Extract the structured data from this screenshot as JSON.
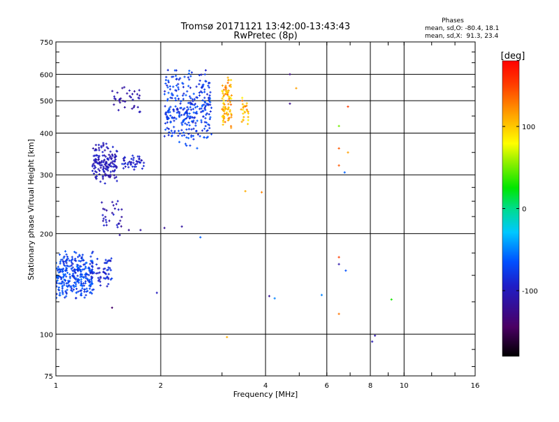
{
  "header": {
    "title_line1": "Tromsø 20171121 13:42:00-13:43:43",
    "title_line2": "RwPretec (8p)"
  },
  "phases_box": {
    "heading": "Phases",
    "line_o": "mean, sd,O: -80.4, 18.1",
    "line_x": "mean, sd,X:  91.3, 23.4"
  },
  "colorbar": {
    "unit_label": "[deg]",
    "range": [
      -180,
      180
    ],
    "ticks": [
      {
        "value": 100,
        "label": "100"
      },
      {
        "value": 0,
        "label": "0"
      },
      {
        "value": -100,
        "label": "-100"
      }
    ]
  },
  "chart_data": {
    "type": "scatter",
    "xlabel": "Frequency [MHz]",
    "ylabel": "Stationary phase Virtual Height [km]",
    "x_scale": "log",
    "y_scale": "log",
    "xlim": [
      1,
      16
    ],
    "ylim": [
      75,
      750
    ],
    "grid": true,
    "x_ticks": [
      {
        "value": 1,
        "label": "1"
      },
      {
        "value": 2,
        "label": "2"
      },
      {
        "value": 4,
        "label": "4"
      },
      {
        "value": 6,
        "label": "6"
      },
      {
        "value": 8,
        "label": "8"
      },
      {
        "value": 10,
        "label": "10"
      },
      {
        "value": 16,
        "label": "16"
      }
    ],
    "y_ticks": [
      {
        "value": 75,
        "label": "75"
      },
      {
        "value": 100,
        "label": "100"
      },
      {
        "value": 200,
        "label": "200"
      },
      {
        "value": 300,
        "label": "300"
      },
      {
        "value": 400,
        "label": "400"
      },
      {
        "value": 500,
        "label": "500"
      },
      {
        "value": 600,
        "label": "600"
      },
      {
        "value": 750,
        "label": "750"
      }
    ],
    "color_variable": "phase [deg]",
    "clusters": [
      {
        "x_range": [
          1.0,
          1.28
        ],
        "y_range": [
          125,
          180
        ],
        "phase_range": [
          -90,
          -55
        ],
        "count": 300
      },
      {
        "x_range": [
          1.25,
          1.45
        ],
        "y_range": [
          135,
          175
        ],
        "phase_range": [
          -100,
          -75
        ],
        "count": 60
      },
      {
        "x_range": [
          1.27,
          1.5
        ],
        "y_range": [
          280,
          380
        ],
        "phase_range": [
          -115,
          -90
        ],
        "count": 150
      },
      {
        "x_range": [
          1.55,
          1.8
        ],
        "y_range": [
          310,
          345
        ],
        "phase_range": [
          -110,
          -85
        ],
        "count": 45
      },
      {
        "x_range": [
          1.45,
          1.75
        ],
        "y_range": [
          450,
          560
        ],
        "phase_range": [
          -120,
          -100
        ],
        "count": 35
      },
      {
        "x_range": [
          1.35,
          1.55
        ],
        "y_range": [
          180,
          260
        ],
        "phase_range": [
          -120,
          -90
        ],
        "count": 30
      },
      {
        "x_range": [
          2.05,
          2.8
        ],
        "y_range": [
          345,
          640
        ],
        "phase_range": [
          -95,
          -60
        ],
        "count": 300
      },
      {
        "x_range": [
          3.0,
          3.2
        ],
        "y_range": [
          410,
          600
        ],
        "phase_range": [
          85,
          135
        ],
        "count": 90
      },
      {
        "x_range": [
          3.4,
          3.6
        ],
        "y_range": [
          410,
          520
        ],
        "phase_range": [
          80,
          140
        ],
        "count": 25
      }
    ],
    "points": [
      {
        "x": 1.45,
        "y": 120,
        "phase": -140
      },
      {
        "x": 1.62,
        "y": 205,
        "phase": -120
      },
      {
        "x": 1.75,
        "y": 205,
        "phase": -115
      },
      {
        "x": 2.05,
        "y": 208,
        "phase": -120
      },
      {
        "x": 2.3,
        "y": 210,
        "phase": -115
      },
      {
        "x": 2.6,
        "y": 195,
        "phase": -60
      },
      {
        "x": 3.1,
        "y": 98,
        "phase": 110
      },
      {
        "x": 3.5,
        "y": 268,
        "phase": 110
      },
      {
        "x": 3.9,
        "y": 266,
        "phase": 125
      },
      {
        "x": 4.7,
        "y": 600,
        "phase": -130
      },
      {
        "x": 4.7,
        "y": 490,
        "phase": -125
      },
      {
        "x": 4.9,
        "y": 545,
        "phase": 115
      },
      {
        "x": 4.1,
        "y": 130,
        "phase": -120
      },
      {
        "x": 4.25,
        "y": 128,
        "phase": -50
      },
      {
        "x": 5.8,
        "y": 131,
        "phase": -50
      },
      {
        "x": 6.5,
        "y": 420,
        "phase": 50
      },
      {
        "x": 6.5,
        "y": 360,
        "phase": 140
      },
      {
        "x": 6.5,
        "y": 320,
        "phase": 140
      },
      {
        "x": 6.75,
        "y": 305,
        "phase": -60
      },
      {
        "x": 6.9,
        "y": 480,
        "phase": 150
      },
      {
        "x": 6.9,
        "y": 350,
        "phase": 115
      },
      {
        "x": 6.5,
        "y": 170,
        "phase": 150
      },
      {
        "x": 6.5,
        "y": 162,
        "phase": -110
      },
      {
        "x": 6.8,
        "y": 155,
        "phase": -65
      },
      {
        "x": 6.5,
        "y": 115,
        "phase": 130
      },
      {
        "x": 8.1,
        "y": 95,
        "phase": -105
      },
      {
        "x": 8.25,
        "y": 99,
        "phase": -110
      },
      {
        "x": 9.2,
        "y": 127,
        "phase": 30
      },
      {
        "x": 1.95,
        "y": 133,
        "phase": -100
      }
    ]
  }
}
